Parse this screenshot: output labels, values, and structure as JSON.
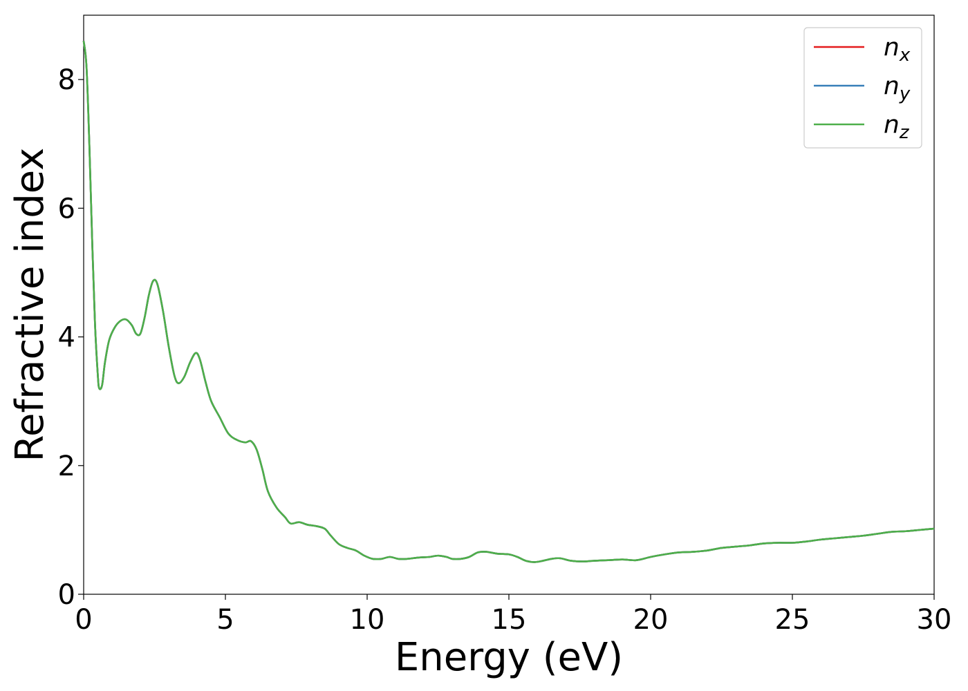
{
  "chart_data": {
    "type": "line",
    "title": "",
    "xlabel": "Energy (eV)",
    "ylabel": "Refractive index",
    "xlim": [
      0,
      30
    ],
    "ylim": [
      0,
      9.0
    ],
    "xticks": [
      0,
      5,
      10,
      15,
      20,
      25,
      30
    ],
    "yticks": [
      0,
      2,
      4,
      6,
      8
    ],
    "grid": false,
    "legend_position": "top-right",
    "series": [
      {
        "name": "n_x",
        "legend_base": "n",
        "legend_sub": "x",
        "color": "#e41a1c",
        "x": [
          0,
          0.1,
          0.2,
          0.3,
          0.4,
          0.5,
          0.55,
          0.65,
          0.75,
          0.9,
          1.1,
          1.3,
          1.5,
          1.7,
          1.85,
          2.0,
          2.15,
          2.3,
          2.45,
          2.6,
          2.8,
          3.0,
          3.2,
          3.35,
          3.55,
          3.75,
          3.95,
          4.1,
          4.3,
          4.5,
          4.8,
          5.1,
          5.4,
          5.7,
          5.9,
          6.1,
          6.3,
          6.5,
          6.8,
          7.1,
          7.3,
          7.6,
          7.9,
          8.2,
          8.5,
          8.7,
          9.0,
          9.3,
          9.6,
          9.9,
          10.2,
          10.5,
          10.8,
          11.1,
          11.4,
          11.8,
          12.2,
          12.5,
          12.8,
          13.0,
          13.3,
          13.6,
          13.9,
          14.2,
          14.6,
          15.0,
          15.3,
          15.6,
          15.9,
          16.2,
          16.5,
          16.8,
          17.2,
          17.6,
          18.0,
          18.5,
          19.0,
          19.5,
          20.0,
          20.5,
          21.0,
          21.5,
          22.0,
          22.5,
          23.0,
          23.5,
          24.0,
          24.5,
          25.0,
          25.5,
          26.0,
          26.5,
          27.0,
          27.5,
          28.0,
          28.5,
          29.0,
          29.5,
          30.0
        ],
        "y": [
          8.6,
          8.2,
          7.0,
          5.5,
          4.2,
          3.4,
          3.2,
          3.25,
          3.6,
          3.95,
          4.15,
          4.25,
          4.27,
          4.18,
          4.05,
          4.05,
          4.3,
          4.65,
          4.87,
          4.82,
          4.4,
          3.85,
          3.4,
          3.28,
          3.38,
          3.6,
          3.75,
          3.65,
          3.3,
          3.0,
          2.75,
          2.5,
          2.4,
          2.36,
          2.38,
          2.25,
          1.95,
          1.6,
          1.35,
          1.2,
          1.1,
          1.12,
          1.08,
          1.06,
          1.02,
          0.92,
          0.78,
          0.72,
          0.68,
          0.6,
          0.55,
          0.55,
          0.58,
          0.55,
          0.55,
          0.57,
          0.58,
          0.6,
          0.58,
          0.55,
          0.55,
          0.58,
          0.65,
          0.66,
          0.63,
          0.62,
          0.58,
          0.52,
          0.5,
          0.52,
          0.55,
          0.56,
          0.52,
          0.51,
          0.52,
          0.53,
          0.54,
          0.53,
          0.58,
          0.62,
          0.65,
          0.66,
          0.68,
          0.72,
          0.74,
          0.76,
          0.79,
          0.8,
          0.8,
          0.82,
          0.85,
          0.87,
          0.89,
          0.91,
          0.94,
          0.97,
          0.98,
          1.0,
          1.02
        ]
      },
      {
        "name": "n_y",
        "legend_base": "n",
        "legend_sub": "y",
        "color": "#377eb8",
        "same_as": "n_x"
      },
      {
        "name": "n_z",
        "legend_base": "n",
        "legend_sub": "z",
        "color": "#4daf4a",
        "same_as": "n_x"
      }
    ]
  }
}
